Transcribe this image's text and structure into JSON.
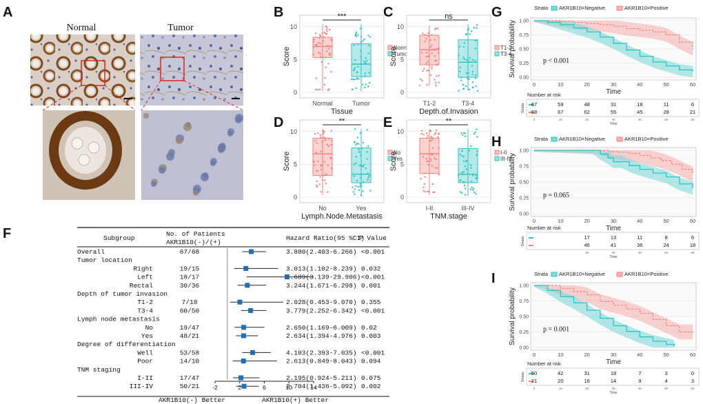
{
  "panels": {
    "A": "A",
    "B": "B",
    "C": "C",
    "D": "D",
    "E": "E",
    "F": "F",
    "G": "G",
    "H": "H",
    "I": "I"
  },
  "colors": {
    "red": "#f2827a",
    "teal": "#2ec2c2",
    "forest": "#1f6fb8",
    "pink_band": "#f7b3b3",
    "teal_band": "#7fd9d9"
  },
  "panel_a": {
    "normal_label": "Normal",
    "tumor_label": "Tumor"
  },
  "box_panels": [
    {
      "id": "B",
      "ylabel": "Score",
      "xlabel": "Tissue",
      "groups": [
        "Normal",
        "Tumor"
      ],
      "significance": "***",
      "yticks": [
        "0",
        "5",
        "10"
      ],
      "legend": [
        "Normal",
        "Tumor"
      ],
      "boxes": [
        {
          "q1": 5.3,
          "median": 7.0,
          "q3": 8.4,
          "low": 0.2,
          "high": 10.4
        },
        {
          "q1": 2.4,
          "median": 4.3,
          "q3": 7.4,
          "low": 0.2,
          "high": 10.4
        }
      ]
    },
    {
      "id": "C",
      "ylabel": "Score",
      "xlabel": "Depth.of.Invasion",
      "groups": [
        "T1-2",
        "T3-4"
      ],
      "significance": "ns",
      "yticks": [
        "0",
        "5",
        "10"
      ],
      "legend": [
        "T1-2",
        "T3-4"
      ],
      "boxes": [
        {
          "q1": 4.2,
          "median": 6.5,
          "q3": 8.7,
          "low": 1.0,
          "high": 10.2
        },
        {
          "q1": 2.3,
          "median": 4.6,
          "q3": 8.0,
          "low": 0.2,
          "high": 10.4
        }
      ]
    },
    {
      "id": "D",
      "ylabel": "Score",
      "xlabel": "Lymph.Node.Metastasis",
      "groups": [
        "No",
        "Yes"
      ],
      "significance": "**",
      "yticks": [
        "0",
        "5",
        "10"
      ],
      "legend": [
        "No",
        "Yes"
      ],
      "boxes": [
        {
          "q1": 3.3,
          "median": 6.6,
          "q3": 9.0,
          "low": 0.3,
          "high": 10.4
        },
        {
          "q1": 2.2,
          "median": 3.5,
          "q3": 7.5,
          "low": 0.2,
          "high": 10.4
        }
      ]
    },
    {
      "id": "E",
      "ylabel": "Score",
      "xlabel": "TNM.stage",
      "groups": [
        "I-II",
        "III-IV"
      ],
      "significance": "**",
      "yticks": [
        "0",
        "5",
        "10"
      ],
      "legend": [
        "I-II",
        "III-IV"
      ],
      "boxes": [
        {
          "q1": 3.6,
          "median": 6.6,
          "q3": 9.0,
          "low": 0.3,
          "high": 10.4
        },
        {
          "q1": 2.2,
          "median": 3.5,
          "q3": 7.4,
          "low": 0.2,
          "high": 10.4
        }
      ]
    }
  ],
  "chart_data": [
    {
      "type": "forest",
      "panel": "F",
      "headers": {
        "subgroup": "Subgroup",
        "patients_line1": "No. of Patients",
        "patients_line2": "AKR1B10(-)/(+)",
        "hr": "Hazard Ratio(95 %CI)",
        "p": "P Value"
      },
      "xticks": [
        "-2",
        "2",
        "6",
        "10",
        "14"
      ],
      "xlim": [
        -2,
        14
      ],
      "footer_left": "AKR1B10(-) Better",
      "footer_right": "AKR1B10(+) Better",
      "rows": [
        {
          "label": "Overall",
          "indent": 0,
          "n": "67/68",
          "hr_text": "3.880(2.403-6.266)",
          "p": "<0.001",
          "hr": 3.88,
          "lo": 2.403,
          "hi": 6.266
        },
        {
          "label": "Tumor location",
          "indent": 0,
          "header": true
        },
        {
          "label": "Right",
          "indent": 1,
          "n": "19/15",
          "hr_text": "3.013(1.102-8.239)",
          "p": "0.032",
          "hr": 3.013,
          "lo": 1.102,
          "hi": 8.239
        },
        {
          "label": "Left",
          "indent": 1,
          "n": "18/17",
          "hr_text": "9.689(3.139-29.906)",
          "p": "<0.001",
          "hr": 9.689,
          "lo": 3.139,
          "hi": 29.906
        },
        {
          "label": "Rectal",
          "indent": 1,
          "n": "30/36",
          "hr_text": "3.244(1.671-6.298)",
          "p": "0.001",
          "hr": 3.244,
          "lo": 1.671,
          "hi": 6.298
        },
        {
          "label": "Depth of tumor invasion",
          "indent": 0,
          "header": true
        },
        {
          "label": "T1-2",
          "indent": 1,
          "n": "7/18",
          "hr_text": "2.028(0.453-9.070)",
          "p": "0.355",
          "hr": 2.028,
          "lo": 0.453,
          "hi": 9.07
        },
        {
          "label": "T3-4",
          "indent": 1,
          "n": "60/50",
          "hr_text": "3.779(2.252-6.342)",
          "p": "<0.001",
          "hr": 3.779,
          "lo": 2.252,
          "hi": 6.342
        },
        {
          "label": "Lymph node metastasis",
          "indent": 0,
          "header": true
        },
        {
          "label": "No",
          "indent": 1,
          "n": "19/47",
          "hr_text": "2.650(1.169-6.009)",
          "p": "0.02",
          "hr": 2.65,
          "lo": 1.169,
          "hi": 6.009
        },
        {
          "label": "Yes",
          "indent": 1,
          "n": "48/21",
          "hr_text": "2.634(1.394-4.976)",
          "p": "0.003",
          "hr": 2.634,
          "lo": 1.394,
          "hi": 4.976
        },
        {
          "label": "Degree of differentiation",
          "indent": 0,
          "header": true
        },
        {
          "label": "Well",
          "indent": 1,
          "n": "53/58",
          "hr_text": "4.103(2.393-7.035)",
          "p": "<0.001",
          "hr": 4.103,
          "lo": 2.393,
          "hi": 7.035
        },
        {
          "label": "Poor",
          "indent": 1,
          "n": "14/10",
          "hr_text": "2.613(0.849-8.043)",
          "p": "0.094",
          "hr": 2.613,
          "lo": 0.849,
          "hi": 8.043
        },
        {
          "label": "TNM staging",
          "indent": 0,
          "header": true
        },
        {
          "label": "I-II",
          "indent": 1,
          "n": "17/47",
          "hr_text": "2.195(0.924-5.211)",
          "p": "0.075",
          "hr": 2.195,
          "lo": 0.924,
          "hi": 5.211
        },
        {
          "label": "III-IV",
          "indent": 1,
          "n": "50/21",
          "hr_text": "2.704(1.436-5.092)",
          "p": "0.002",
          "hr": 2.704,
          "lo": 1.436,
          "hi": 5.092
        }
      ]
    },
    {
      "type": "km",
      "panel": "G",
      "legend_title": "Strata",
      "legend": [
        "AKR1B10=Negative",
        "AKR1B10=Positive"
      ],
      "ylabel": "Survival probability",
      "xlabel": "Time",
      "xticks": [
        "0",
        "10",
        "20",
        "30",
        "40",
        "50",
        "60"
      ],
      "yticks": [
        "0.00",
        "0.25",
        "0.50",
        "0.75",
        "1.00"
      ],
      "pvalue": "p < 0.001",
      "risk_title": "Number at risk",
      "risk_strata_label": "Strata",
      "risk_time_label": "Time",
      "risk_tick_labels": [
        "0",
        "10",
        "20",
        "30",
        "40",
        "50",
        "60"
      ],
      "risk": [
        [
          "67",
          "59",
          "48",
          "31",
          "18",
          "11",
          "6"
        ],
        [
          "68",
          "67",
          "62",
          "55",
          "45",
          "28",
          "21"
        ]
      ],
      "curves": {
        "neg": {
          "t": [
            0,
            5,
            10,
            15,
            20,
            25,
            30,
            35,
            40,
            45,
            50,
            55,
            60
          ],
          "s": [
            1,
            0.97,
            0.93,
            0.87,
            0.8,
            0.71,
            0.6,
            0.48,
            0.37,
            0.27,
            0.2,
            0.13,
            0.1
          ]
        },
        "pos": {
          "t": [
            0,
            5,
            10,
            15,
            20,
            25,
            30,
            35,
            40,
            45,
            50,
            55,
            60
          ],
          "s": [
            1,
            1,
            0.99,
            0.97,
            0.95,
            0.93,
            0.9,
            0.86,
            0.83,
            0.8,
            0.75,
            0.62,
            0.5
          ]
        }
      }
    },
    {
      "type": "km",
      "panel": "H",
      "legend_title": "Strata",
      "legend": [
        "AKR1B10=Negative",
        "AKR1B10=Positive"
      ],
      "ylabel": "Survival probability",
      "xlabel": "Time",
      "xticks": [
        "0",
        "10",
        "20",
        "30",
        "40",
        "50",
        "60"
      ],
      "yticks": [
        "0.00",
        "0.25",
        "0.50",
        "0.75",
        "1.00"
      ],
      "pvalue": "p = 0.065",
      "risk_title": "Number at risk",
      "risk_strata_label": "Strata",
      "risk_time_label": "Time",
      "risk_tick_labels": [
        "20",
        "30",
        "40",
        "50",
        "60"
      ],
      "risk": [
        [
          "17",
          "13",
          "11",
          "8",
          "6"
        ],
        [
          "46",
          "41",
          "36",
          "24",
          "18"
        ]
      ],
      "curves": {
        "neg": {
          "t": [
            0,
            22,
            25,
            28,
            30,
            33,
            36,
            40,
            45,
            50,
            55,
            60
          ],
          "s": [
            1,
            1,
            0.94,
            0.88,
            0.82,
            0.82,
            0.76,
            0.7,
            0.64,
            0.58,
            0.47,
            0.4
          ]
        },
        "pos": {
          "t": [
            0,
            25,
            28,
            32,
            36,
            40,
            44,
            48,
            52,
            56,
            60
          ],
          "s": [
            1,
            1,
            0.98,
            0.97,
            0.95,
            0.92,
            0.88,
            0.84,
            0.78,
            0.7,
            0.62
          ]
        }
      }
    },
    {
      "type": "km",
      "panel": "I",
      "legend_title": "Strata",
      "legend": [
        "AKR1B10=Negative",
        "AKR1B10=Positive"
      ],
      "ylabel": "Survival probability",
      "xlabel": "Time",
      "xticks": [
        "0",
        "10",
        "20",
        "30",
        "40",
        "50",
        "60"
      ],
      "yticks": [
        "0.00",
        "0.25",
        "0.50",
        "0.75",
        "1.00"
      ],
      "pvalue": "p = 0.001",
      "risk_title": "Number at risk",
      "risk_strata_label": "Strata",
      "risk_time_label": "Time",
      "risk_tick_labels": [
        "0",
        "10",
        "20",
        "30",
        "40",
        "50",
        "60"
      ],
      "risk": [
        [
          "50",
          "42",
          "31",
          "18",
          "7",
          "3",
          "0"
        ],
        [
          "21",
          "20",
          "16",
          "14",
          "9",
          "4",
          "3"
        ]
      ],
      "curves": {
        "neg": {
          "t": [
            0,
            5,
            10,
            15,
            20,
            25,
            30,
            35,
            40,
            45,
            50,
            53
          ],
          "s": [
            1,
            0.92,
            0.82,
            0.72,
            0.6,
            0.47,
            0.35,
            0.26,
            0.17,
            0.1,
            0.05,
            0.02
          ]
        },
        "pos": {
          "t": [
            0,
            5,
            10,
            15,
            20,
            25,
            30,
            35,
            40,
            45,
            50,
            55,
            60
          ],
          "s": [
            1,
            1,
            0.95,
            0.9,
            0.85,
            0.74,
            0.68,
            0.62,
            0.55,
            0.45,
            0.35,
            0.25,
            0.25
          ]
        }
      }
    }
  ]
}
